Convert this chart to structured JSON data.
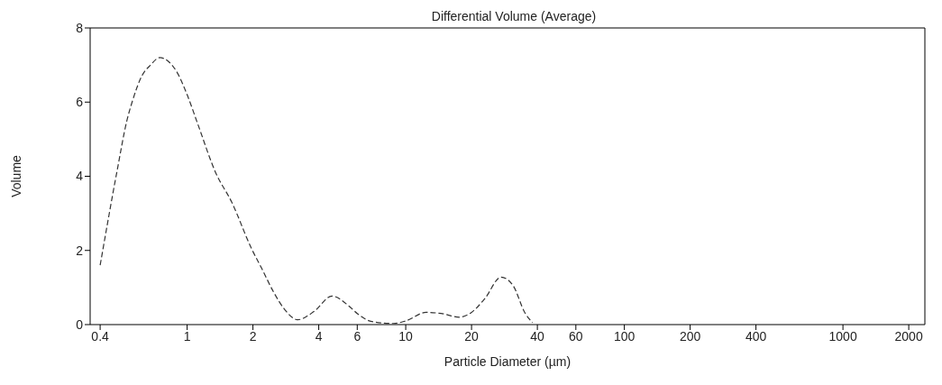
{
  "chart_data": {
    "type": "line",
    "title": "Differential Volume (Average)",
    "xlabel": "Particle Diameter (µm)",
    "ylabel": "Volume",
    "x": [
      0.4,
      0.48,
      0.53,
      0.56,
      0.62,
      0.68,
      0.75,
      0.82,
      0.9,
      1.0,
      1.12,
      1.35,
      1.6,
      1.97,
      2.2,
      2.5,
      2.8,
      3.2,
      3.8,
      4.6,
      5.5,
      6.0,
      7.0,
      8.8,
      10,
      12.4,
      14.5,
      17.6,
      20,
      23,
      27.3,
      31,
      35,
      38
    ],
    "series": [
      {
        "color": "#333333",
        "values": [
          1.6,
          4.2,
          5.5,
          6.0,
          6.7,
          7.0,
          7.2,
          7.1,
          6.8,
          6.2,
          5.4,
          4.1,
          3.3,
          2.05,
          1.5,
          0.85,
          0.4,
          0.13,
          0.35,
          0.77,
          0.5,
          0.3,
          0.08,
          0.03,
          0.1,
          0.33,
          0.3,
          0.2,
          0.33,
          0.7,
          1.28,
          1.05,
          0.33,
          0.05
        ]
      }
    ],
    "log": "x",
    "xlim": [
      0.36,
      2370
    ],
    "xticks": [
      0.4,
      1,
      2,
      4,
      6,
      10,
      20,
      40,
      60,
      100,
      200,
      400,
      1000,
      2000
    ],
    "ylim": [
      0,
      8
    ],
    "yticks": [
      0,
      2,
      4,
      6,
      8
    ],
    "grid": false,
    "marker": "none",
    "line_style": "dashed"
  }
}
